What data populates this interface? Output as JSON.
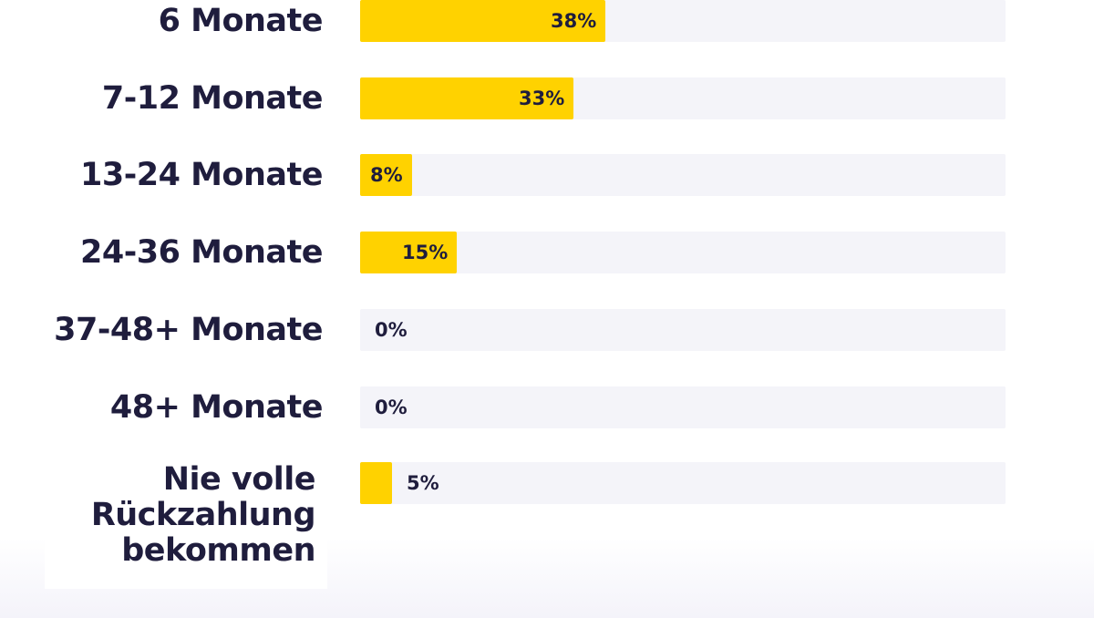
{
  "chart_data": {
    "type": "bar",
    "orientation": "horizontal",
    "categories": [
      "6 Monate",
      "7-12 Monate",
      "13-24 Monate",
      "24-36 Monate",
      "37-48+ Monate",
      "48+ Monate",
      "Nie volle\nRückzahlung\nbekommen"
    ],
    "values": [
      38,
      33,
      8,
      15,
      0,
      0,
      5
    ],
    "value_labels": [
      "38%",
      "33%",
      "8%",
      "15%",
      "0%",
      "0%",
      "5%"
    ],
    "xlim": [
      0,
      100
    ],
    "grid": false,
    "legend": "none"
  },
  "colors": {
    "bar": "#ffd200",
    "track": "#f4f4f9",
    "text": "#1f1d3d"
  }
}
